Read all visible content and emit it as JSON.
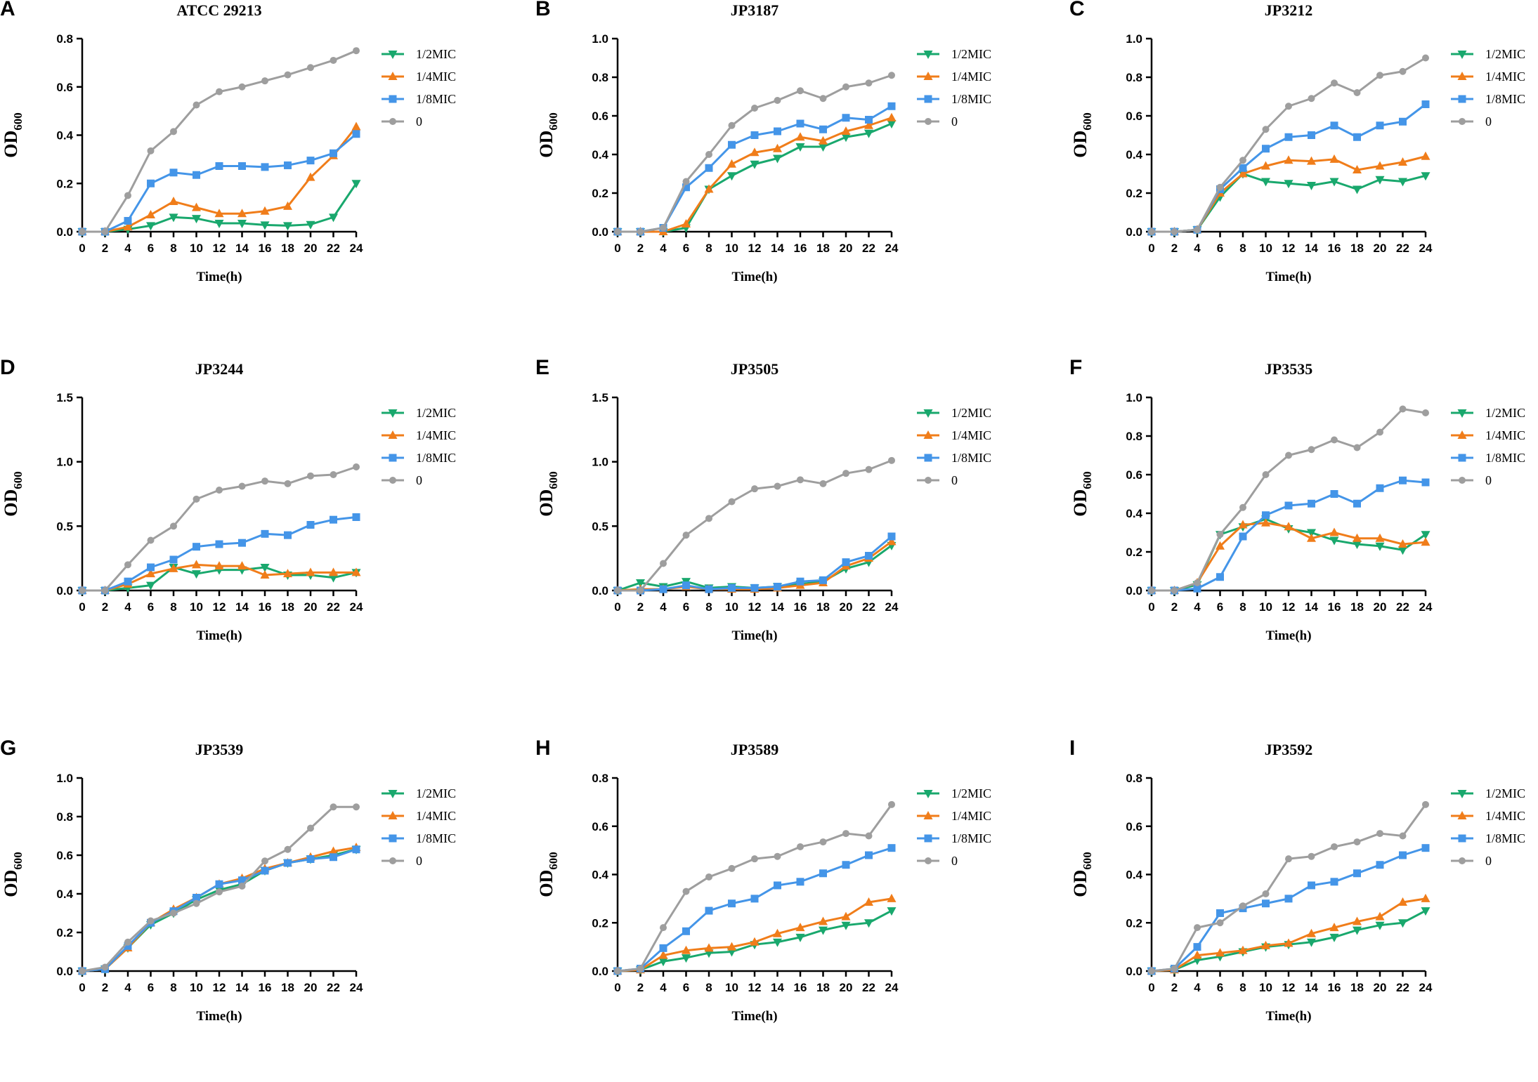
{
  "figure": {
    "legend_labels": [
      "1/2MIC",
      "1/4MIC",
      "1/8MIC",
      "0"
    ]
  },
  "chart_data": [
    {
      "letter": "A",
      "type": "line",
      "title": "ATCC 29213",
      "xlabel": "Time(h)",
      "ylabel": "OD",
      "ylabel_sub": "600",
      "x": [
        0,
        2,
        4,
        6,
        8,
        10,
        12,
        14,
        16,
        18,
        20,
        22,
        24
      ],
      "xticks": [
        "0",
        "2",
        "4",
        "6",
        "8",
        "10",
        "12",
        "14",
        "16",
        "18",
        "20",
        "22",
        "24"
      ],
      "ylim": [
        0,
        0.8
      ],
      "yticks": [
        "0.0",
        "0.2",
        "0.4",
        "0.6",
        "0.8"
      ],
      "series": [
        {
          "name": "1/2MIC",
          "color": "#19a86d",
          "marker": "triangle-down",
          "values": [
            0,
            0,
            0.01,
            0.025,
            0.06,
            0.055,
            0.035,
            0.035,
            0.028,
            0.025,
            0.03,
            0.06,
            0.2
          ]
        },
        {
          "name": "1/4MIC",
          "color": "#f07d1a",
          "marker": "triangle-up",
          "values": [
            0,
            0,
            0.02,
            0.07,
            0.125,
            0.1,
            0.075,
            0.075,
            0.085,
            0.105,
            0.225,
            0.315,
            0.435
          ]
        },
        {
          "name": "1/8MIC",
          "color": "#4495e8",
          "marker": "square",
          "values": [
            0,
            0,
            0.045,
            0.2,
            0.245,
            0.235,
            0.272,
            0.272,
            0.268,
            0.275,
            0.295,
            0.325,
            0.405
          ]
        },
        {
          "name": "0",
          "color": "#9e9e9e",
          "marker": "circle",
          "values": [
            0,
            0,
            0.15,
            0.335,
            0.415,
            0.525,
            0.58,
            0.6,
            0.625,
            0.65,
            0.68,
            0.71,
            0.75
          ]
        }
      ]
    },
    {
      "letter": "B",
      "type": "line",
      "title": "JP3187",
      "xlabel": "Time(h)",
      "ylabel": "OD",
      "ylabel_sub": "600",
      "x": [
        0,
        2,
        4,
        6,
        8,
        10,
        12,
        14,
        16,
        18,
        20,
        22,
        24
      ],
      "xticks": [
        "0",
        "2",
        "4",
        "6",
        "8",
        "10",
        "12",
        "14",
        "16",
        "18",
        "20",
        "22",
        "24"
      ],
      "ylim": [
        0,
        1.0
      ],
      "yticks": [
        "0.0",
        "0.2",
        "0.4",
        "0.6",
        "0.8",
        "1.0"
      ],
      "series": [
        {
          "name": "1/2MIC",
          "color": "#19a86d",
          "marker": "triangle-down",
          "values": [
            0,
            0,
            0,
            0.02,
            0.22,
            0.29,
            0.35,
            0.38,
            0.44,
            0.44,
            0.49,
            0.51,
            0.56
          ]
        },
        {
          "name": "1/4MIC",
          "color": "#f07d1a",
          "marker": "triangle-up",
          "values": [
            0,
            0,
            0,
            0.04,
            0.22,
            0.35,
            0.41,
            0.43,
            0.49,
            0.47,
            0.52,
            0.55,
            0.59
          ]
        },
        {
          "name": "1/8MIC",
          "color": "#4495e8",
          "marker": "square",
          "values": [
            0,
            0,
            0.02,
            0.23,
            0.33,
            0.45,
            0.5,
            0.52,
            0.56,
            0.53,
            0.59,
            0.58,
            0.65
          ]
        },
        {
          "name": "0",
          "color": "#9e9e9e",
          "marker": "circle",
          "values": [
            0,
            0,
            0.02,
            0.26,
            0.4,
            0.55,
            0.64,
            0.68,
            0.73,
            0.69,
            0.75,
            0.77,
            0.81
          ]
        }
      ]
    },
    {
      "letter": "C",
      "type": "line",
      "title": "JP3212",
      "xlabel": "Time(h)",
      "ylabel": "OD",
      "ylabel_sub": "600",
      "x": [
        0,
        2,
        4,
        6,
        8,
        10,
        12,
        14,
        16,
        18,
        20,
        22,
        24
      ],
      "xticks": [
        "0",
        "2",
        "4",
        "6",
        "8",
        "10",
        "12",
        "14",
        "16",
        "18",
        "20",
        "22",
        "24"
      ],
      "ylim": [
        0,
        1.0
      ],
      "yticks": [
        "0.0",
        "0.2",
        "0.4",
        "0.6",
        "0.8",
        "1.0"
      ],
      "series": [
        {
          "name": "1/2MIC",
          "color": "#19a86d",
          "marker": "triangle-down",
          "values": [
            0,
            0,
            0.01,
            0.18,
            0.3,
            0.26,
            0.25,
            0.24,
            0.26,
            0.22,
            0.27,
            0.26,
            0.29
          ]
        },
        {
          "name": "1/4MIC",
          "color": "#f07d1a",
          "marker": "triangle-up",
          "values": [
            0,
            0,
            0.01,
            0.2,
            0.3,
            0.34,
            0.37,
            0.365,
            0.375,
            0.32,
            0.34,
            0.36,
            0.39
          ]
        },
        {
          "name": "1/8MIC",
          "color": "#4495e8",
          "marker": "square",
          "values": [
            0,
            0,
            0.01,
            0.22,
            0.33,
            0.43,
            0.49,
            0.5,
            0.55,
            0.49,
            0.55,
            0.57,
            0.66
          ]
        },
        {
          "name": "0",
          "color": "#9e9e9e",
          "marker": "circle",
          "values": [
            0,
            0,
            0.01,
            0.23,
            0.37,
            0.53,
            0.65,
            0.69,
            0.77,
            0.72,
            0.81,
            0.83,
            0.9
          ]
        }
      ]
    },
    {
      "letter": "D",
      "type": "line",
      "title": "JP3244",
      "xlabel": "Time(h)",
      "ylabel": "OD",
      "ylabel_sub": "600",
      "x": [
        0,
        2,
        4,
        6,
        8,
        10,
        12,
        14,
        16,
        18,
        20,
        22,
        24
      ],
      "xticks": [
        "0",
        "2",
        "4",
        "6",
        "8",
        "10",
        "12",
        "14",
        "16",
        "18",
        "20",
        "22",
        "24"
      ],
      "ylim": [
        0,
        1.5
      ],
      "yticks": [
        "0.0",
        "0.5",
        "1.0",
        "1.5"
      ],
      "series": [
        {
          "name": "1/2MIC",
          "color": "#19a86d",
          "marker": "triangle-down",
          "values": [
            0,
            0,
            0.02,
            0.04,
            0.18,
            0.13,
            0.16,
            0.16,
            0.18,
            0.12,
            0.12,
            0.1,
            0.14
          ]
        },
        {
          "name": "1/4MIC",
          "color": "#f07d1a",
          "marker": "triangle-up",
          "values": [
            0,
            0,
            0.05,
            0.13,
            0.17,
            0.2,
            0.19,
            0.19,
            0.12,
            0.13,
            0.14,
            0.14,
            0.14
          ]
        },
        {
          "name": "1/8MIC",
          "color": "#4495e8",
          "marker": "square",
          "values": [
            0,
            0,
            0.07,
            0.18,
            0.24,
            0.34,
            0.36,
            0.37,
            0.44,
            0.43,
            0.51,
            0.55,
            0.57
          ]
        },
        {
          "name": "0",
          "color": "#9e9e9e",
          "marker": "circle",
          "values": [
            0,
            0,
            0.2,
            0.39,
            0.5,
            0.71,
            0.78,
            0.81,
            0.85,
            0.83,
            0.89,
            0.9,
            0.96
          ]
        }
      ]
    },
    {
      "letter": "E",
      "type": "line",
      "title": "JP3505",
      "xlabel": "Time(h)",
      "ylabel": "OD",
      "ylabel_sub": "600",
      "x": [
        0,
        2,
        4,
        6,
        8,
        10,
        12,
        14,
        16,
        18,
        20,
        22,
        24
      ],
      "xticks": [
        "0",
        "2",
        "4",
        "6",
        "8",
        "10",
        "12",
        "14",
        "16",
        "18",
        "20",
        "22",
        "24"
      ],
      "ylim": [
        0,
        1.5
      ],
      "yticks": [
        "0.0",
        "0.5",
        "1.0",
        "1.5"
      ],
      "series": [
        {
          "name": "1/2MIC",
          "color": "#19a86d",
          "marker": "triangle-down",
          "values": [
            0,
            0.06,
            0.03,
            0.07,
            0.02,
            0.03,
            0.02,
            0.03,
            0.05,
            0.07,
            0.17,
            0.22,
            0.35
          ]
        },
        {
          "name": "1/4MIC",
          "color": "#f07d1a",
          "marker": "triangle-up",
          "values": [
            0,
            0.01,
            0.01,
            0.03,
            0.01,
            0.01,
            0.01,
            0.02,
            0.04,
            0.06,
            0.19,
            0.25,
            0.38
          ]
        },
        {
          "name": "1/8MIC",
          "color": "#4495e8",
          "marker": "square",
          "values": [
            0,
            0,
            0.01,
            0.04,
            0.01,
            0.02,
            0.02,
            0.03,
            0.07,
            0.08,
            0.22,
            0.27,
            0.42
          ]
        },
        {
          "name": "0",
          "color": "#9e9e9e",
          "marker": "circle",
          "values": [
            0,
            0,
            0.21,
            0.43,
            0.56,
            0.69,
            0.79,
            0.81,
            0.86,
            0.83,
            0.91,
            0.94,
            1.01
          ]
        }
      ]
    },
    {
      "letter": "F",
      "type": "line",
      "title": "JP3535",
      "xlabel": "Time(h)",
      "ylabel": "OD",
      "ylabel_sub": "600",
      "x": [
        0,
        2,
        4,
        6,
        8,
        10,
        12,
        14,
        16,
        18,
        20,
        22,
        24
      ],
      "xticks": [
        "0",
        "2",
        "4",
        "6",
        "8",
        "10",
        "12",
        "14",
        "16",
        "18",
        "20",
        "22",
        "24"
      ],
      "ylim": [
        0,
        1.0
      ],
      "yticks": [
        "0.0",
        "0.2",
        "0.4",
        "0.6",
        "0.8",
        "1.0"
      ],
      "series": [
        {
          "name": "1/2MIC",
          "color": "#19a86d",
          "marker": "triangle-down",
          "values": [
            0,
            0,
            0.03,
            0.29,
            0.33,
            0.37,
            0.32,
            0.3,
            0.26,
            0.24,
            0.23,
            0.21,
            0.29
          ]
        },
        {
          "name": "1/4MIC",
          "color": "#f07d1a",
          "marker": "triangle-up",
          "values": [
            0,
            0,
            0.04,
            0.23,
            0.34,
            0.35,
            0.33,
            0.27,
            0.3,
            0.27,
            0.27,
            0.24,
            0.25
          ]
        },
        {
          "name": "1/8MIC",
          "color": "#4495e8",
          "marker": "square",
          "values": [
            0,
            0,
            0.01,
            0.07,
            0.28,
            0.39,
            0.44,
            0.45,
            0.5,
            0.45,
            0.53,
            0.57,
            0.56
          ]
        },
        {
          "name": "0",
          "color": "#9e9e9e",
          "marker": "circle",
          "values": [
            0,
            0,
            0.04,
            0.29,
            0.43,
            0.6,
            0.7,
            0.73,
            0.78,
            0.74,
            0.82,
            0.94,
            0.92
          ]
        }
      ]
    },
    {
      "letter": "G",
      "type": "line",
      "title": "JP3539",
      "xlabel": "Time(h)",
      "ylabel": "OD",
      "ylabel_sub": "600",
      "x": [
        0,
        2,
        4,
        6,
        8,
        10,
        12,
        14,
        16,
        18,
        20,
        22,
        24
      ],
      "xticks": [
        "0",
        "2",
        "4",
        "6",
        "8",
        "10",
        "12",
        "14",
        "16",
        "18",
        "20",
        "22",
        "24"
      ],
      "ylim": [
        0,
        1.0
      ],
      "yticks": [
        "0.0",
        "0.2",
        "0.4",
        "0.6",
        "0.8",
        "1.0"
      ],
      "series": [
        {
          "name": "1/2MIC",
          "color": "#19a86d",
          "marker": "triangle-down",
          "values": [
            0,
            0.01,
            0.12,
            0.24,
            0.3,
            0.37,
            0.42,
            0.45,
            0.52,
            0.56,
            0.58,
            0.6,
            0.63
          ]
        },
        {
          "name": "1/4MIC",
          "color": "#f07d1a",
          "marker": "triangle-up",
          "values": [
            0,
            0.01,
            0.12,
            0.25,
            0.32,
            0.38,
            0.45,
            0.48,
            0.53,
            0.56,
            0.59,
            0.62,
            0.64
          ]
        },
        {
          "name": "1/8MIC",
          "color": "#4495e8",
          "marker": "square",
          "values": [
            0,
            0.01,
            0.13,
            0.25,
            0.31,
            0.38,
            0.45,
            0.47,
            0.52,
            0.56,
            0.58,
            0.59,
            0.63
          ]
        },
        {
          "name": "0",
          "color": "#9e9e9e",
          "marker": "circle",
          "values": [
            0,
            0.02,
            0.15,
            0.26,
            0.3,
            0.35,
            0.41,
            0.44,
            0.57,
            0.63,
            0.74,
            0.85,
            0.85
          ]
        }
      ]
    },
    {
      "letter": "H",
      "type": "line",
      "title": "JP3589",
      "xlabel": "Time(h)",
      "ylabel": "OD",
      "ylabel_sub": "600",
      "x": [
        0,
        2,
        4,
        6,
        8,
        10,
        12,
        14,
        16,
        18,
        20,
        22,
        24
      ],
      "xticks": [
        "0",
        "2",
        "4",
        "6",
        "8",
        "10",
        "12",
        "14",
        "16",
        "18",
        "20",
        "22",
        "24"
      ],
      "ylim": [
        0,
        0.8
      ],
      "yticks": [
        "0.0",
        "0.2",
        "0.4",
        "0.6",
        "0.8"
      ],
      "series": [
        {
          "name": "1/2MIC",
          "color": "#19a86d",
          "marker": "triangle-down",
          "values": [
            0,
            0.005,
            0.04,
            0.055,
            0.075,
            0.08,
            0.11,
            0.12,
            0.14,
            0.17,
            0.19,
            0.2,
            0.25
          ]
        },
        {
          "name": "1/4MIC",
          "color": "#f07d1a",
          "marker": "triangle-up",
          "values": [
            0,
            0.005,
            0.065,
            0.085,
            0.095,
            0.1,
            0.12,
            0.155,
            0.18,
            0.205,
            0.225,
            0.285,
            0.3
          ]
        },
        {
          "name": "1/8MIC",
          "color": "#4495e8",
          "marker": "square",
          "values": [
            0,
            0.01,
            0.095,
            0.165,
            0.25,
            0.28,
            0.3,
            0.355,
            0.37,
            0.405,
            0.44,
            0.48,
            0.51
          ]
        },
        {
          "name": "0",
          "color": "#9e9e9e",
          "marker": "circle",
          "values": [
            0,
            0.01,
            0.18,
            0.33,
            0.39,
            0.425,
            0.465,
            0.475,
            0.515,
            0.535,
            0.57,
            0.56,
            0.69
          ]
        }
      ]
    },
    {
      "letter": "I",
      "type": "line",
      "title": "JP3592",
      "xlabel": "Time(h)",
      "ylabel": "OD",
      "ylabel_sub": "600",
      "x": [
        0,
        2,
        4,
        6,
        8,
        10,
        12,
        14,
        16,
        18,
        20,
        22,
        24
      ],
      "xticks": [
        "0",
        "2",
        "4",
        "6",
        "8",
        "10",
        "12",
        "14",
        "16",
        "18",
        "20",
        "22",
        "24"
      ],
      "ylim": [
        0,
        0.8
      ],
      "yticks": [
        "0.0",
        "0.2",
        "0.4",
        "0.6",
        "0.8"
      ],
      "series": [
        {
          "name": "1/2MIC",
          "color": "#19a86d",
          "marker": "triangle-down",
          "values": [
            0,
            0.005,
            0.045,
            0.06,
            0.08,
            0.1,
            0.11,
            0.12,
            0.14,
            0.17,
            0.19,
            0.2,
            0.25
          ]
        },
        {
          "name": "1/4MIC",
          "color": "#f07d1a",
          "marker": "triangle-up",
          "values": [
            0,
            0.005,
            0.065,
            0.075,
            0.085,
            0.105,
            0.115,
            0.155,
            0.18,
            0.205,
            0.225,
            0.285,
            0.3
          ]
        },
        {
          "name": "1/8MIC",
          "color": "#4495e8",
          "marker": "square",
          "values": [
            0,
            0.01,
            0.1,
            0.24,
            0.26,
            0.28,
            0.3,
            0.355,
            0.37,
            0.405,
            0.44,
            0.48,
            0.51
          ]
        },
        {
          "name": "0",
          "color": "#9e9e9e",
          "marker": "circle",
          "values": [
            0,
            0.01,
            0.18,
            0.2,
            0.27,
            0.32,
            0.465,
            0.475,
            0.515,
            0.535,
            0.57,
            0.56,
            0.69
          ]
        }
      ]
    }
  ]
}
